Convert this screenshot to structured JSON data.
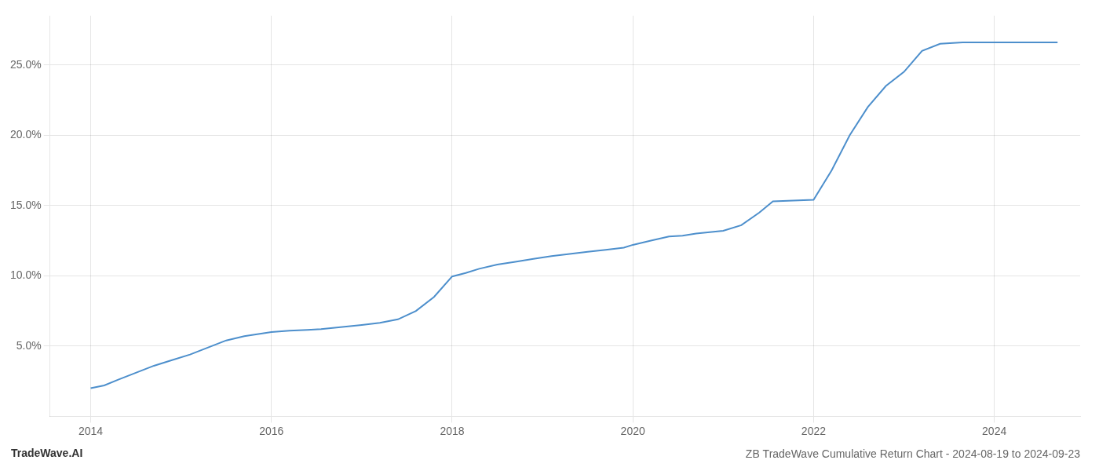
{
  "chart_data": {
    "type": "line",
    "title": "ZB TradeWave Cumulative Return Chart - 2024-08-19 to 2024-09-23",
    "annotations": [
      "TradeWave.AI"
    ],
    "color": "#4d8fcc",
    "x": [
      2014.0,
      2014.15,
      2014.3,
      2014.5,
      2014.7,
      2014.9,
      2015.1,
      2015.3,
      2015.5,
      2015.7,
      2015.9,
      2016.0,
      2016.2,
      2016.4,
      2016.55,
      2016.7,
      2016.85,
      2017.0,
      2017.2,
      2017.4,
      2017.6,
      2017.8,
      2018.0,
      2018.15,
      2018.3,
      2018.5,
      2018.7,
      2018.9,
      2019.1,
      2019.3,
      2019.5,
      2019.7,
      2019.9,
      2020.0,
      2020.2,
      2020.4,
      2020.55,
      2020.7,
      2021.0,
      2021.2,
      2021.4,
      2021.55,
      2022.0,
      2022.2,
      2022.4,
      2022.6,
      2022.8,
      2023.0,
      2023.2,
      2023.4,
      2023.65,
      2024.0,
      2024.7
    ],
    "values": [
      2.0,
      2.2,
      2.6,
      3.1,
      3.6,
      4.0,
      4.4,
      4.9,
      5.4,
      5.7,
      5.9,
      6.0,
      6.1,
      6.15,
      6.2,
      6.3,
      6.4,
      6.5,
      6.65,
      6.9,
      7.5,
      8.5,
      9.95,
      10.2,
      10.5,
      10.8,
      11.0,
      11.2,
      11.4,
      11.55,
      11.7,
      11.85,
      12.0,
      12.2,
      12.5,
      12.8,
      12.85,
      13.0,
      13.2,
      13.6,
      14.5,
      15.3,
      15.4,
      17.5,
      20.0,
      22.0,
      23.5,
      24.5,
      26.0,
      26.5,
      26.6,
      26.6,
      26.6
    ],
    "xlim": [
      2013.55,
      2024.95
    ],
    "ylim": [
      0,
      28.5
    ],
    "xticks": [
      2014,
      2016,
      2018,
      2020,
      2022,
      2024
    ],
    "yticks": [
      {
        "value": 5.0,
        "label": "5.0%"
      },
      {
        "value": 10.0,
        "label": "10.0%"
      },
      {
        "value": 15.0,
        "label": "15.0%"
      },
      {
        "value": 20.0,
        "label": "20.0%"
      },
      {
        "value": 25.0,
        "label": "25.0%"
      }
    ],
    "grid": true
  }
}
